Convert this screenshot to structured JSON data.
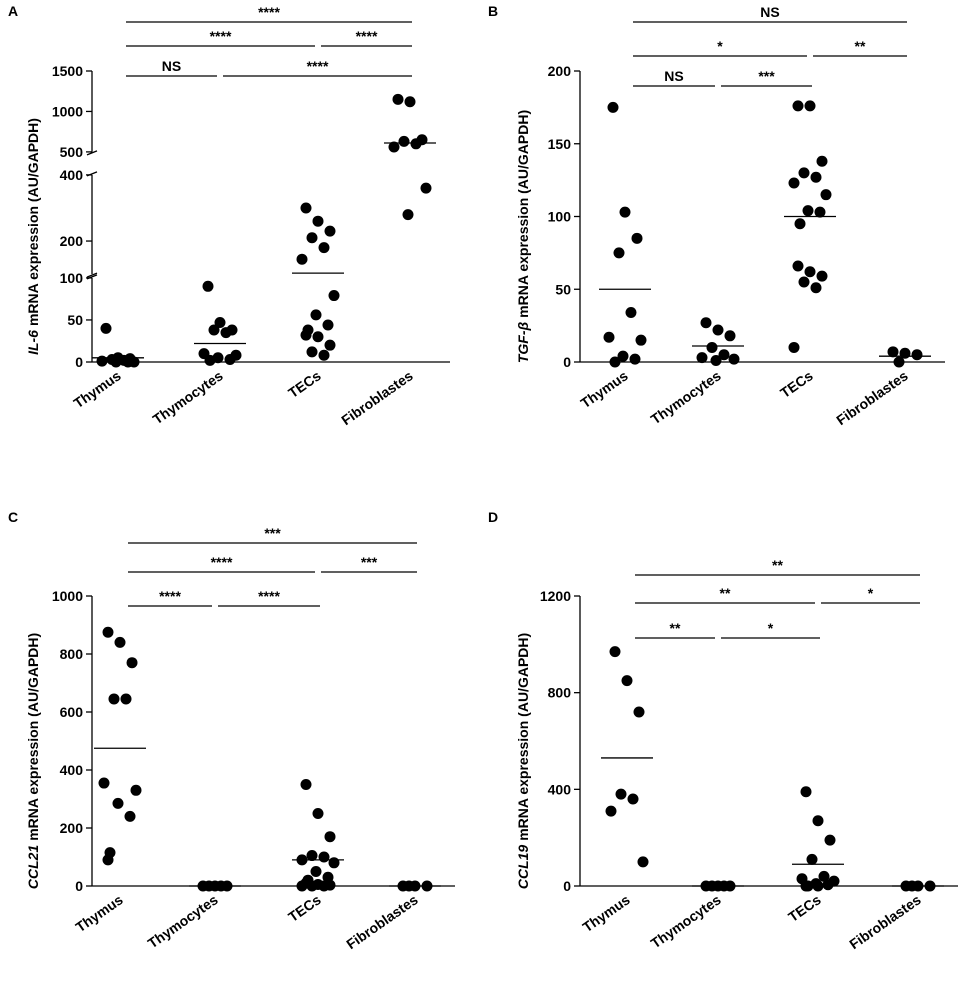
{
  "chart_data": [
    {
      "type": "dot",
      "panel": "A",
      "ylabel_gene": "IL-6",
      "ylabel": "mRNA expression (AU/GAPDH)",
      "categories": [
        "Thymus",
        "Thymocytes",
        "TECs",
        "Fibroblastes"
      ],
      "points": [
        [
          40,
          5,
          4,
          3,
          2,
          1,
          0,
          0,
          0
        ],
        [
          90,
          47,
          38,
          38,
          35,
          10,
          8,
          5,
          3,
          2
        ],
        [
          300,
          260,
          230,
          210,
          180,
          145,
          79,
          56,
          44,
          38,
          32,
          30,
          20,
          12,
          8
        ],
        [
          1150,
          1120,
          650,
          630,
          600,
          560,
          360,
          280
        ]
      ],
      "means": [
        5,
        22,
        103,
        610
      ],
      "ylim_segments": [
        [
          0,
          100
        ],
        [
          100,
          400
        ],
        [
          500,
          1500
        ]
      ],
      "yticks": [
        0,
        50,
        100,
        200,
        400,
        500,
        1000,
        1500
      ],
      "comparison_rows": [
        [
          {
            "from": 0,
            "to": 3,
            "label": "****"
          }
        ],
        [
          {
            "from": 0,
            "to": 2,
            "label": "****"
          },
          {
            "from": 2,
            "to": 3,
            "label": "****"
          }
        ],
        [
          {
            "from": 0,
            "to": 1,
            "label": "NS"
          },
          {
            "from": 1,
            "to": 3,
            "label": "****"
          }
        ]
      ],
      "color": "#000000"
    },
    {
      "type": "dot",
      "panel": "B",
      "ylabel_gene": "TGF-β",
      "ylabel": "mRNA expression (AU/GAPDH)",
      "categories": [
        "Thymus",
        "Thymocytes",
        "TECs",
        "Fibroblastes"
      ],
      "points": [
        [
          175,
          103,
          85,
          75,
          34,
          17,
          15,
          4,
          2,
          0
        ],
        [
          27,
          22,
          18,
          10,
          5,
          3,
          2,
          1
        ],
        [
          176,
          176,
          138,
          130,
          127,
          123,
          115,
          104,
          103,
          95,
          66,
          62,
          59,
          55,
          51,
          10
        ],
        [
          7,
          6,
          5,
          0
        ]
      ],
      "means": [
        50,
        11,
        100,
        4
      ],
      "ylim": [
        0,
        200
      ],
      "yticks": [
        0,
        50,
        100,
        150,
        200
      ],
      "comparison_rows": [
        [
          {
            "from": 0,
            "to": 3,
            "label": "NS"
          }
        ],
        [
          {
            "from": 0,
            "to": 2,
            "label": "*"
          },
          {
            "from": 2,
            "to": 3,
            "label": "**"
          }
        ],
        [
          {
            "from": 0,
            "to": 1,
            "label": "NS"
          },
          {
            "from": 1,
            "to": 2,
            "label": "***"
          }
        ]
      ],
      "color": "#000000"
    },
    {
      "type": "dot",
      "panel": "C",
      "ylabel_gene": "CCL21",
      "ylabel": "mRNA expression (AU/GAPDH)",
      "categories": [
        "Thymus",
        "Thymocytes",
        "TECs",
        "Fibroblastes"
      ],
      "points": [
        [
          875,
          840,
          770,
          645,
          645,
          355,
          330,
          285,
          240,
          115,
          90
        ],
        [
          0,
          0,
          0,
          0,
          0
        ],
        [
          350,
          250,
          170,
          105,
          100,
          90,
          80,
          50,
          30,
          20,
          10,
          5,
          3,
          0,
          0,
          0
        ],
        [
          0,
          0,
          0,
          0
        ]
      ],
      "means": [
        475,
        0,
        90,
        0
      ],
      "ylim": [
        0,
        1000
      ],
      "yticks": [
        0,
        200,
        400,
        600,
        800,
        1000
      ],
      "comparison_rows": [
        [
          {
            "from": 0,
            "to": 3,
            "label": "***"
          }
        ],
        [
          {
            "from": 0,
            "to": 2,
            "label": "****"
          },
          {
            "from": 2,
            "to": 3,
            "label": "***"
          }
        ],
        [
          {
            "from": 0,
            "to": 1,
            "label": "****"
          },
          {
            "from": 1,
            "to": 2,
            "label": "****"
          }
        ]
      ],
      "color": "#000000"
    },
    {
      "type": "dot",
      "panel": "D",
      "ylabel_gene": "CCL19",
      "ylabel": "mRNA expression (AU/GAPDH)",
      "categories": [
        "Thymus",
        "Thymocytes",
        "TECs",
        "Fibroblastes"
      ],
      "points": [
        [
          970,
          850,
          720,
          380,
          360,
          310,
          100
        ],
        [
          0,
          0,
          0,
          0,
          0
        ],
        [
          390,
          270,
          190,
          110,
          40,
          30,
          20,
          10,
          5,
          0,
          0,
          0
        ],
        [
          0,
          0,
          0,
          0
        ]
      ],
      "means": [
        530,
        0,
        90,
        0
      ],
      "ylim": [
        0,
        1200
      ],
      "yticks": [
        0,
        400,
        800,
        1200
      ],
      "comparison_rows": [
        [
          {
            "from": 0,
            "to": 3,
            "label": "**"
          }
        ],
        [
          {
            "from": 0,
            "to": 2,
            "label": "**"
          },
          {
            "from": 2,
            "to": 3,
            "label": "*"
          }
        ],
        [
          {
            "from": 0,
            "to": 1,
            "label": "**"
          },
          {
            "from": 1,
            "to": 2,
            "label": "*"
          }
        ]
      ],
      "color": "#000000"
    }
  ]
}
